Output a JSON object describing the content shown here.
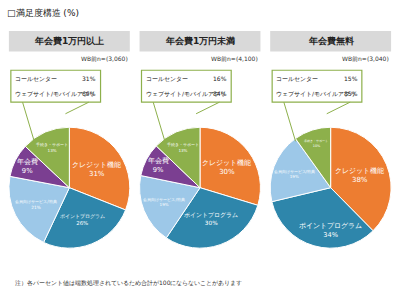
{
  "title": "□満足度構造 (%)",
  "note": "注）各パーセント値は端数処理されているため合計が100にならないことがあります",
  "chart_data": [
    {
      "type": "pie",
      "title": "年会費1万円以上",
      "subtitle": "WB前n=(3,060)",
      "categories": [
        "クレジット機能",
        "ポイントプログラム",
        "会員向けサービス/特典",
        "年会費",
        "手続き・サポート"
      ],
      "values": [
        31,
        26,
        21,
        9,
        13
      ],
      "value_labels": [
        "31%",
        "26%",
        "21%",
        "9%",
        "13%"
      ],
      "colors": [
        "#ed7d31",
        "#2e86ab",
        "#9dc8e8",
        "#7b3f91",
        "#8db04b"
      ],
      "data_labels": true,
      "breakdown": {
        "categories": [
          "コールセンター",
          "ウェブサイト/モバイルアプリ"
        ],
        "values": [
          31,
          69
        ],
        "value_labels": [
          "31%",
          "69%"
        ]
      }
    },
    {
      "type": "pie",
      "title": "年会費1万円未満",
      "subtitle": "WB前n=(4,100)",
      "categories": [
        "クレジット機能",
        "ポイントプログラム",
        "会員向けサービス/特典",
        "年会費",
        "手続き・サポート"
      ],
      "values": [
        30,
        30,
        19,
        9,
        13
      ],
      "value_labels": [
        "30%",
        "30%",
        "19%",
        "9%",
        "13%"
      ],
      "colors": [
        "#ed7d31",
        "#2e86ab",
        "#9dc8e8",
        "#7b3f91",
        "#8db04b"
      ],
      "data_labels": true,
      "breakdown": {
        "categories": [
          "コールセンター",
          "ウェブサイト/モバイルアプリ"
        ],
        "values": [
          16,
          84
        ],
        "value_labels": [
          "16%",
          "84%"
        ]
      }
    },
    {
      "type": "pie",
      "title": "年会費無料",
      "subtitle": "WB前n=(3,040)",
      "categories": [
        "クレジット機能",
        "ポイントプログラム",
        "会員向けサービス/特典",
        "手続き・サポート"
      ],
      "values": [
        38,
        34,
        19,
        10
      ],
      "value_labels": [
        "38%",
        "34%",
        "19%",
        "10%"
      ],
      "colors": [
        "#ed7d31",
        "#2e86ab",
        "#9dc8e8",
        "#8db04b"
      ],
      "data_labels": true,
      "breakdown": {
        "categories": [
          "コールセンター",
          "ウェブサイト/モバイルアプリ"
        ],
        "values": [
          15,
          85
        ],
        "value_labels": [
          "15%",
          "85%"
        ]
      }
    }
  ]
}
